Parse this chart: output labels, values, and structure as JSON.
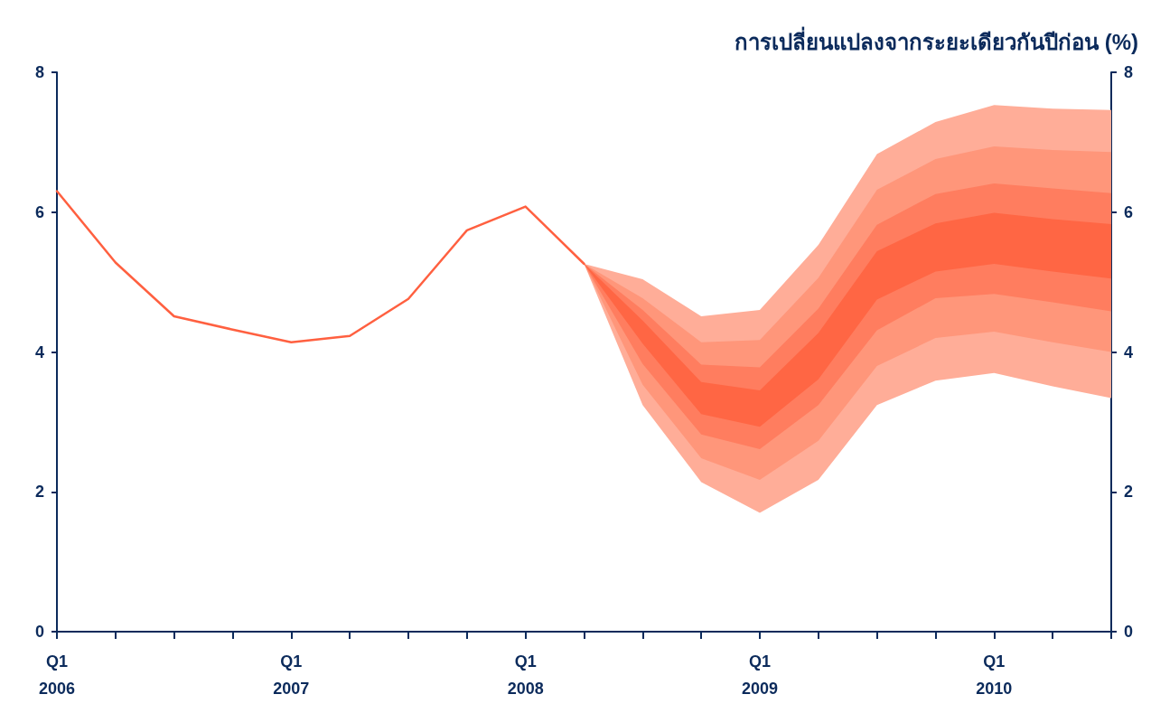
{
  "chart_data": {
    "type": "line",
    "y2label": "การเปลี่ยนแปลงจากระยะเดียวกันปีก่อน (%)",
    "categories": [
      "Q1\n2006",
      null,
      null,
      null,
      "Q1\n2007",
      null,
      null,
      null,
      "Q1\n2008",
      null,
      null,
      null,
      "Q1\n2009",
      null,
      null,
      null,
      "Q1\n2010",
      null,
      null
    ],
    "series": [
      {
        "type": "area",
        "color": "#ffad98",
        "values": [
          null,
          null,
          null,
          null,
          null,
          null,
          null,
          null,
          null,
          null,
          null,
          null,
          null,
          null,
          null,
          null,
          null,
          null,
          null
        ],
        "lower": [
          null,
          null,
          null,
          null,
          null,
          null,
          null,
          null,
          null,
          5.26,
          3.24,
          2.14,
          1.7,
          2.17,
          3.24,
          3.59,
          3.7,
          3.51,
          3.34
        ],
        "upper": [
          null,
          null,
          null,
          null,
          null,
          null,
          null,
          null,
          null,
          5.26,
          5.04,
          4.51,
          4.6,
          5.53,
          6.83,
          7.29,
          7.53,
          7.48,
          7.46
        ]
      },
      {
        "type": "area",
        "color": "#ff967a",
        "values": [
          null,
          null,
          null,
          null,
          null,
          null,
          null,
          null,
          null,
          null,
          null,
          null,
          null,
          null,
          null,
          null,
          null,
          null,
          null
        ],
        "lower": [
          null,
          null,
          null,
          null,
          null,
          null,
          null,
          null,
          null,
          5.26,
          3.53,
          2.48,
          2.17,
          2.73,
          3.8,
          4.2,
          4.29,
          4.14,
          4.0
        ],
        "upper": [
          null,
          null,
          null,
          null,
          null,
          null,
          null,
          null,
          null,
          5.26,
          4.77,
          4.14,
          4.17,
          5.06,
          6.32,
          6.76,
          6.94,
          6.89,
          6.86
        ]
      },
      {
        "type": "area",
        "color": "#ff7d5f",
        "values": [
          null,
          null,
          null,
          null,
          null,
          null,
          null,
          null,
          null,
          null,
          null,
          null,
          null,
          null,
          null,
          null,
          null,
          null,
          null
        ],
        "lower": [
          null,
          null,
          null,
          null,
          null,
          null,
          null,
          null,
          null,
          5.26,
          3.83,
          2.82,
          2.61,
          3.24,
          4.31,
          4.77,
          4.83,
          4.71,
          4.58
        ],
        "upper": [
          null,
          null,
          null,
          null,
          null,
          null,
          null,
          null,
          null,
          5.26,
          4.6,
          3.82,
          3.78,
          4.62,
          5.82,
          6.26,
          6.41,
          6.34,
          6.27
        ]
      },
      {
        "type": "area",
        "color": "#ff6644",
        "values": [
          null,
          null,
          null,
          null,
          null,
          null,
          null,
          null,
          null,
          null,
          null,
          null,
          null,
          null,
          null,
          null,
          null,
          null,
          null
        ],
        "lower": [
          null,
          null,
          null,
          null,
          null,
          null,
          null,
          null,
          null,
          5.26,
          4.12,
          3.11,
          2.93,
          3.61,
          4.75,
          5.15,
          5.26,
          5.15,
          5.05
        ],
        "upper": [
          null,
          null,
          null,
          null,
          null,
          null,
          null,
          null,
          null,
          5.26,
          4.45,
          3.57,
          3.45,
          4.27,
          5.44,
          5.84,
          5.99,
          5.9,
          5.83
        ]
      },
      {
        "color": "#ff6040",
        "values": [
          6.3,
          5.28,
          4.51,
          4.32,
          4.14,
          4.23,
          4.76,
          5.74,
          6.08,
          5.26,
          null,
          null,
          null,
          null,
          null,
          null,
          null,
          null,
          null
        ]
      }
    ],
    "ylim": [
      0,
      8
    ],
    "yticks": [
      0,
      2,
      4,
      6,
      8
    ],
    "y2lim": [
      0,
      8
    ],
    "y2ticks": [
      0,
      2,
      4,
      6,
      8
    ],
    "grid": false,
    "marker": "none",
    "line_style": "solid"
  }
}
